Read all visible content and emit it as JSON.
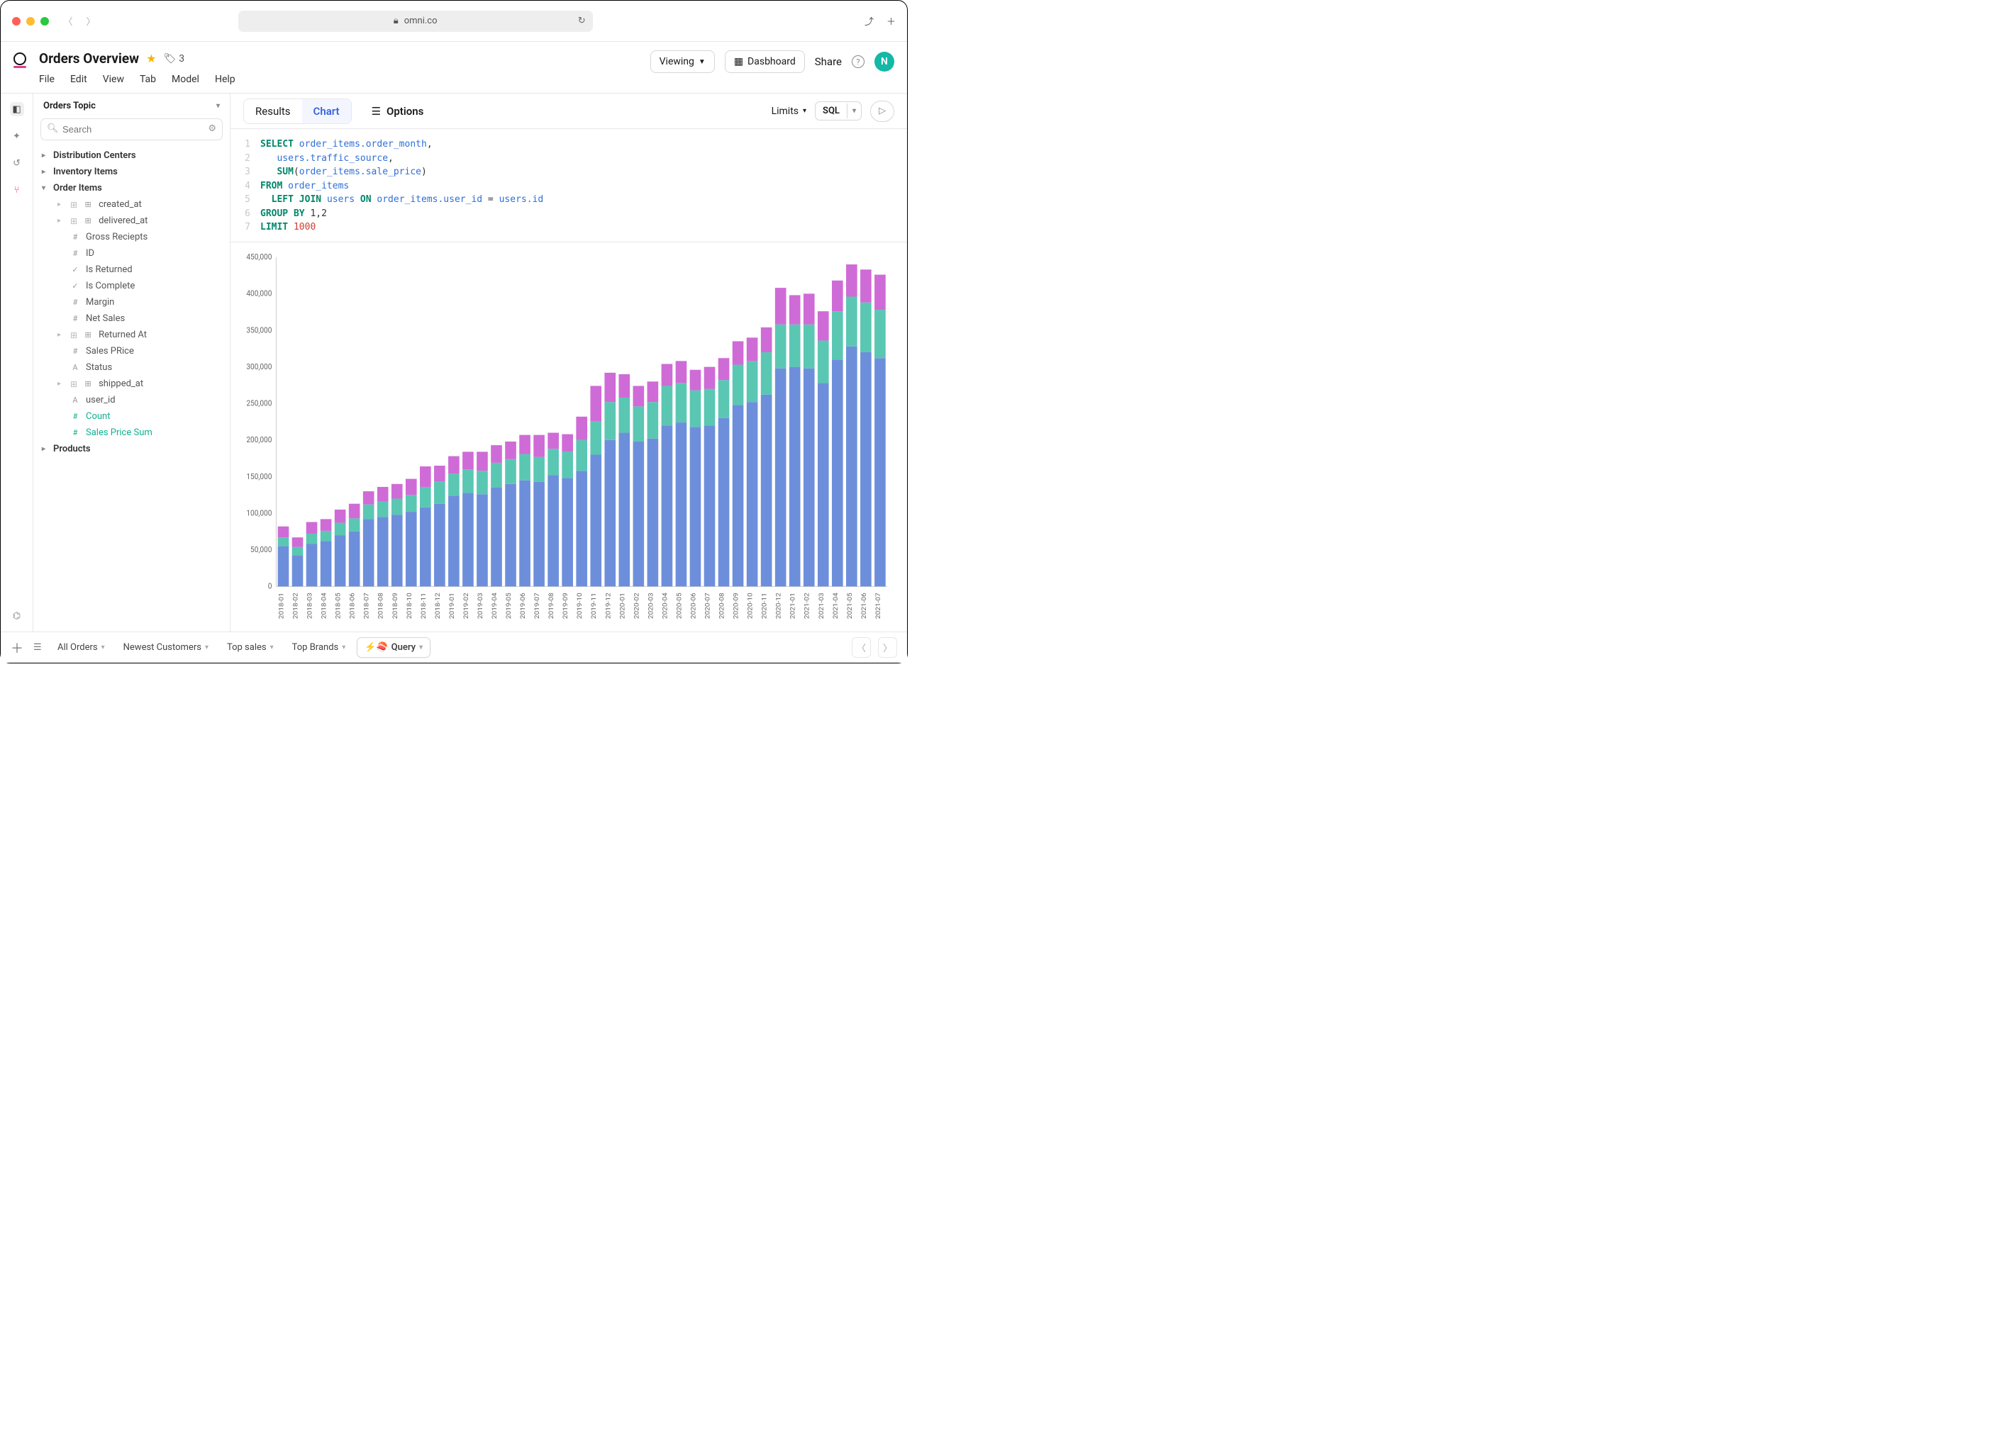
{
  "browser": {
    "url": "omni.co"
  },
  "header": {
    "title": "Orders Overview",
    "tag_count": "3",
    "menu": [
      "File",
      "Edit",
      "View",
      "Tab",
      "Model",
      "Help"
    ],
    "viewing": "Viewing",
    "dashboard": "Dasbhoard",
    "share": "Share",
    "avatar": "N"
  },
  "sidebar": {
    "topic": "Orders Topic",
    "search_placeholder": "Search",
    "sections": [
      {
        "label": "Distribution Centers",
        "expanded": false
      },
      {
        "label": "Inventory Items",
        "expanded": false
      },
      {
        "label": "Order Items",
        "expanded": true,
        "fields": [
          {
            "label": "created_at",
            "icon": "date",
            "expandable": true
          },
          {
            "label": "delivered_at",
            "icon": "date",
            "expandable": true
          },
          {
            "label": "Gross Reciepts",
            "icon": "#"
          },
          {
            "label": "ID",
            "icon": "#"
          },
          {
            "label": "Is Returned",
            "icon": "check"
          },
          {
            "label": "Is Complete",
            "icon": "check"
          },
          {
            "label": "Margin",
            "icon": "#"
          },
          {
            "label": "Net Sales",
            "icon": "#"
          },
          {
            "label": "Returned At",
            "icon": "date",
            "expandable": true
          },
          {
            "label": "Sales PRice",
            "icon": "#"
          },
          {
            "label": "Status",
            "icon": "A"
          },
          {
            "label": "shipped_at",
            "icon": "date",
            "expandable": true
          },
          {
            "label": "user_id",
            "icon": "A"
          },
          {
            "label": "Count",
            "icon": "#",
            "measure": true
          },
          {
            "label": "Sales Price Sum",
            "icon": "#",
            "measure": true
          }
        ]
      },
      {
        "label": "Products",
        "expanded": false
      }
    ]
  },
  "toolbar": {
    "results": "Results",
    "chart": "Chart",
    "options": "Options",
    "limits": "Limits",
    "sql": "SQL"
  },
  "sql": [
    [
      [
        "kw",
        "SELECT"
      ],
      [
        "op",
        " "
      ],
      [
        "col",
        "order_items.order_month"
      ],
      [
        "op",
        ","
      ]
    ],
    [
      [
        "op",
        "   "
      ],
      [
        "col",
        "users.traffic_source"
      ],
      [
        "op",
        ","
      ]
    ],
    [
      [
        "op",
        "   "
      ],
      [
        "fn",
        "SUM"
      ],
      [
        "op",
        "("
      ],
      [
        "col",
        "order_items.sale_price"
      ],
      [
        "op",
        ")"
      ]
    ],
    [
      [
        "kw",
        "FROM"
      ],
      [
        "op",
        " "
      ],
      [
        "col",
        "order_items"
      ]
    ],
    [
      [
        "op",
        "  "
      ],
      [
        "kw",
        "LEFT JOIN"
      ],
      [
        "op",
        " "
      ],
      [
        "col",
        "users"
      ],
      [
        "op",
        " "
      ],
      [
        "kw",
        "ON"
      ],
      [
        "op",
        " "
      ],
      [
        "col",
        "order_items.user_id"
      ],
      [
        "op",
        " = "
      ],
      [
        "col",
        "users.id"
      ]
    ],
    [
      [
        "kw",
        "GROUP BY"
      ],
      [
        "op",
        " 1,2"
      ]
    ],
    [
      [
        "kw",
        "LIMIT"
      ],
      [
        "op",
        " "
      ],
      [
        "num",
        "1000"
      ]
    ]
  ],
  "chart": {
    "type": "stacked-bar",
    "ylim": [
      0,
      450000
    ],
    "ytick_step": 50000,
    "colors": {
      "a": "#6d8fdb",
      "b": "#5ac7b3",
      "c": "#cf6bd6"
    },
    "background": "#ffffff",
    "axis_color": "#cfcfd3",
    "label_color": "#666666",
    "label_fontsize": 10,
    "bar_gap": 0.22,
    "categories": [
      "2018-01",
      "2018-02",
      "2018-03",
      "2018-04",
      "2018-05",
      "2018-06",
      "2018-07",
      "2018-08",
      "2018-09",
      "2018-10",
      "2018-11",
      "2018-12",
      "2019-01",
      "2019-02",
      "2019-03",
      "2019-04",
      "2019-05",
      "2019-06",
      "2019-07",
      "2019-08",
      "2019-09",
      "2019-10",
      "2019-11",
      "2019-12",
      "2020-01",
      "2020-02",
      "2020-03",
      "2020-04",
      "2020-05",
      "2020-06",
      "2020-07",
      "2020-08",
      "2020-09",
      "2020-10",
      "2020-11",
      "2020-12",
      "2021-01",
      "2021-02",
      "2021-03",
      "2021-04",
      "2021-05",
      "2021-06",
      "2021-07"
    ],
    "series": {
      "a": [
        55000,
        42000,
        58000,
        62000,
        70000,
        75000,
        92000,
        95000,
        98000,
        102000,
        108000,
        113000,
        124000,
        128000,
        126000,
        135000,
        140000,
        145000,
        143000,
        152000,
        148000,
        158000,
        180000,
        200000,
        210000,
        198000,
        202000,
        220000,
        224000,
        218000,
        220000,
        230000,
        248000,
        252000,
        262000,
        298000,
        300000,
        298000,
        278000,
        310000,
        328000,
        320000,
        312000
      ],
      "b": [
        12000,
        12000,
        14000,
        14000,
        17000,
        18000,
        20000,
        21000,
        22000,
        23000,
        28000,
        30000,
        30000,
        32000,
        32000,
        34000,
        34000,
        36000,
        34000,
        36000,
        36000,
        42000,
        46000,
        52000,
        48000,
        48000,
        50000,
        54000,
        54000,
        50000,
        50000,
        52000,
        55000,
        56000,
        58000,
        60000,
        58000,
        60000,
        58000,
        66000,
        68000,
        68000,
        66000
      ],
      "c": [
        15000,
        13000,
        16000,
        16000,
        18000,
        20000,
        18000,
        20000,
        20000,
        22000,
        28000,
        22000,
        24000,
        24000,
        26000,
        24000,
        24000,
        26000,
        30000,
        22000,
        24000,
        32000,
        48000,
        40000,
        32000,
        28000,
        28000,
        30000,
        30000,
        28000,
        30000,
        30000,
        32000,
        32000,
        34000,
        50000,
        40000,
        42000,
        40000,
        42000,
        44000,
        45000,
        48000
      ]
    }
  },
  "bottom": {
    "tabs": [
      {
        "label": "All Orders"
      },
      {
        "label": "Newest Customers"
      },
      {
        "label": "Top sales"
      },
      {
        "label": "Top Brands"
      },
      {
        "label": "Query",
        "active": true,
        "emoji": "⚡🍣"
      }
    ]
  }
}
